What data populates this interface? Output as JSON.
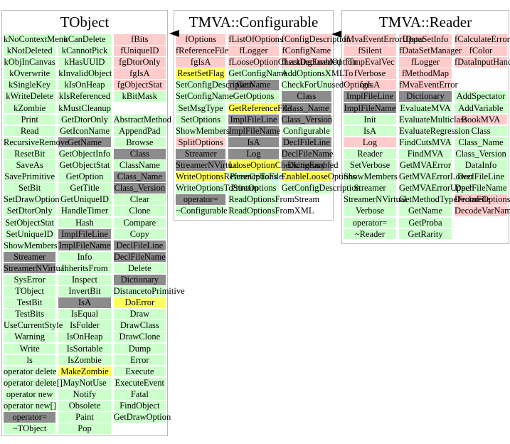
{
  "colors": {
    "g": "#ccffcc",
    "p": "#ffcccc",
    "y": "#ffff5c",
    "d": "#8c8c8c",
    "w": "transparent"
  },
  "panels": [
    {
      "id": "tobject",
      "title": "TObject",
      "columns": [
        [
          [
            "kNoContextMenu",
            "g"
          ],
          [
            "kNotDeleted",
            "g"
          ],
          [
            "kObjInCanvas",
            "g"
          ],
          [
            "kOverwrite",
            "g"
          ],
          [
            "kSingleKey",
            "g"
          ],
          [
            "kWriteDelete",
            "g"
          ],
          [
            "kZombie",
            "g"
          ],
          [
            "Print",
            "g"
          ],
          [
            "Read",
            "g"
          ],
          [
            "RecursiveRemove",
            "g"
          ],
          [
            "ResetBit",
            "g"
          ],
          [
            "SaveAs",
            "g"
          ],
          [
            "SavePrimitive",
            "g"
          ],
          [
            "SetBit",
            "g"
          ],
          [
            "SetDrawOption",
            "g"
          ],
          [
            "SetDtorOnly",
            "g"
          ],
          [
            "SetObjectStat",
            "g"
          ],
          [
            "SetUniqueID",
            "g"
          ],
          [
            "ShowMembers",
            "g"
          ],
          [
            "Streamer",
            "d"
          ],
          [
            "StreamerNVirtual",
            "d"
          ],
          [
            "SysError",
            "g"
          ],
          [
            "TObject",
            "g"
          ],
          [
            "TestBit",
            "g"
          ],
          [
            "TestBits",
            "g"
          ],
          [
            "UseCurrentStyle",
            "g"
          ],
          [
            "Warning",
            "g"
          ],
          [
            "Write",
            "g"
          ],
          [
            "ls",
            "g"
          ],
          [
            "operator delete",
            "g"
          ],
          [
            "operator delete[]",
            "g"
          ],
          [
            "operator new",
            "g"
          ],
          [
            "operator new[]",
            "g"
          ],
          [
            "operator=",
            "d"
          ],
          [
            "~TObject",
            "g"
          ]
        ],
        [
          [
            "kCanDelete",
            "g"
          ],
          [
            "kCannotPick",
            "g"
          ],
          [
            "kHasUUID",
            "g"
          ],
          [
            "kInvalidObject",
            "g"
          ],
          [
            "kIsOnHeap",
            "g"
          ],
          [
            "kIsReferenced",
            "g"
          ],
          [
            "kMustCleanup",
            "g"
          ],
          [
            "GetDtorOnly",
            "g"
          ],
          [
            "GetIconName",
            "g"
          ],
          [
            "GetName",
            "d"
          ],
          [
            "GetObjectInfo",
            "g"
          ],
          [
            "GetObjectStat",
            "g"
          ],
          [
            "GetOption",
            "g"
          ],
          [
            "GetTitle",
            "g"
          ],
          [
            "GetUniqueID",
            "g"
          ],
          [
            "HandleTimer",
            "g"
          ],
          [
            "Hash",
            "g"
          ],
          [
            "ImplFileLine",
            "d"
          ],
          [
            "ImplFileName",
            "d"
          ],
          [
            "Info",
            "g"
          ],
          [
            "InheritsFrom",
            "g"
          ],
          [
            "Inspect",
            "g"
          ],
          [
            "InvertBit",
            "g"
          ],
          [
            "IsA",
            "d"
          ],
          [
            "IsEqual",
            "g"
          ],
          [
            "IsFolder",
            "g"
          ],
          [
            "IsOnHeap",
            "g"
          ],
          [
            "IsSortable",
            "g"
          ],
          [
            "IsZombie",
            "g"
          ],
          [
            "MakeZombie",
            "y"
          ],
          [
            "MayNotUse",
            "g"
          ],
          [
            "Notify",
            "g"
          ],
          [
            "Obsolete",
            "g"
          ],
          [
            "Paint",
            "g"
          ],
          [
            "Pop",
            "g"
          ]
        ],
        [
          [
            "fBits",
            "p"
          ],
          [
            "fUniqueID",
            "p"
          ],
          [
            "fgDtorOnly",
            "p"
          ],
          [
            "fgIsA",
            "p"
          ],
          [
            "fgObjectStat",
            "p"
          ],
          [
            "kBitMask",
            "g"
          ],
          [
            "",
            "w"
          ],
          [
            "AbstractMethod",
            "g"
          ],
          [
            "AppendPad",
            "g"
          ],
          [
            "Browse",
            "g"
          ],
          [
            "Class",
            "d"
          ],
          [
            "ClassName",
            "g"
          ],
          [
            "Class_Name",
            "d"
          ],
          [
            "Class_Version",
            "d"
          ],
          [
            "Clear",
            "g"
          ],
          [
            "Clone",
            "g"
          ],
          [
            "Compare",
            "g"
          ],
          [
            "Copy",
            "g"
          ],
          [
            "DeclFileLine",
            "d"
          ],
          [
            "DeclFileName",
            "d"
          ],
          [
            "Delete",
            "g"
          ],
          [
            "Dictionary",
            "d"
          ],
          [
            "DistancetoPrimitive",
            "g"
          ],
          [
            "DoError",
            "y"
          ],
          [
            "Draw",
            "g"
          ],
          [
            "DrawClass",
            "g"
          ],
          [
            "DrawClone",
            "g"
          ],
          [
            "Dump",
            "g"
          ],
          [
            "Error",
            "g"
          ],
          [
            "Execute",
            "g"
          ],
          [
            "ExecuteEvent",
            "g"
          ],
          [
            "Fatal",
            "g"
          ],
          [
            "FindObject",
            "g"
          ],
          [
            "GetDrawOption",
            "g"
          ],
          [
            "",
            "w"
          ]
        ]
      ]
    },
    {
      "id": "configurable",
      "title": "TMVA::Configurable",
      "columns": [
        [
          [
            "fOptions",
            "p"
          ],
          [
            "fReferenceFile",
            "p"
          ],
          [
            "fgIsA",
            "p"
          ],
          [
            "ResetSetFlag",
            "y"
          ],
          [
            "SetConfigDescription",
            "g"
          ],
          [
            "SetConfigName",
            "g"
          ],
          [
            "SetMsgType",
            "g"
          ],
          [
            "SetOptions",
            "g"
          ],
          [
            "ShowMembers",
            "g"
          ],
          [
            "SplitOptions",
            "p"
          ],
          [
            "Streamer",
            "d"
          ],
          [
            "StreamerNVirtual",
            "d"
          ],
          [
            "WriteOptionsReferenceToFile",
            "y"
          ],
          [
            "WriteOptionsToStream",
            "g"
          ],
          [
            "operator=",
            "d"
          ],
          [
            "~Configurable",
            "g"
          ]
        ],
        [
          [
            "fListOfOptions",
            "p"
          ],
          [
            "fLogger",
            "p"
          ],
          [
            "fLooseOptionCheckingEnabled",
            "p"
          ],
          [
            "GetConfigName",
            "g"
          ],
          [
            "GetName",
            "d"
          ],
          [
            "GetOptions",
            "g"
          ],
          [
            "GetReferenceFile",
            "y"
          ],
          [
            "ImplFileLine",
            "d"
          ],
          [
            "ImplFileName",
            "d"
          ],
          [
            "IsA",
            "d"
          ],
          [
            "Log",
            "d"
          ],
          [
            "LooseOptionCheckingEnabled",
            "y"
          ],
          [
            "ParseOptions",
            "g"
          ],
          [
            "PrintOptions",
            "g"
          ],
          [
            "ReadOptionsFromStream",
            "g"
          ],
          [
            "ReadOptionsFromXML",
            "g"
          ]
        ],
        [
          [
            "fConfigDescription",
            "p"
          ],
          [
            "fConfigName",
            "p"
          ],
          [
            "fLastDeclaredOption",
            "p"
          ],
          [
            "AddOptionsXMLTo",
            "g"
          ],
          [
            "CheckForUnusedOptions",
            "g"
          ],
          [
            "Class",
            "d"
          ],
          [
            "Class_Name",
            "d"
          ],
          [
            "Class_Version",
            "d"
          ],
          [
            "Configurable",
            "g"
          ],
          [
            "DeclFileLine",
            "d"
          ],
          [
            "DeclFileName",
            "d"
          ],
          [
            "Dictionary",
            "d"
          ],
          [
            "EnableLooseOptions",
            "y"
          ],
          [
            "GetConfigDescription",
            "g"
          ],
          [
            "",
            "w"
          ],
          [
            "",
            "w"
          ]
        ]
      ]
    },
    {
      "id": "reader",
      "title": "TMVA::Reader",
      "columns": [
        [
          [
            "fMvaEventErrorUpper",
            "p"
          ],
          [
            "fSilent",
            "p"
          ],
          [
            "fTmpEvalVec",
            "p"
          ],
          [
            "fVerbose",
            "p"
          ],
          [
            "fgIsA",
            "p"
          ],
          [
            "ImplFileLine",
            "d"
          ],
          [
            "ImplFileName",
            "d"
          ],
          [
            "Init",
            "g"
          ],
          [
            "IsA",
            "g"
          ],
          [
            "Log",
            "p"
          ],
          [
            "Reader",
            "g"
          ],
          [
            "SetVerbose",
            "g"
          ],
          [
            "ShowMembers",
            "g"
          ],
          [
            "Streamer",
            "g"
          ],
          [
            "StreamerNVirtual",
            "g"
          ],
          [
            "Verbose",
            "g"
          ],
          [
            "operator=",
            "g"
          ],
          [
            "~Reader",
            "g"
          ]
        ],
        [
          [
            "fDataSetInfo",
            "p"
          ],
          [
            "fDataSetManager",
            "p"
          ],
          [
            "fLogger",
            "p"
          ],
          [
            "fMethodMap",
            "p"
          ],
          [
            "fMvaEventError",
            "p"
          ],
          [
            "Dictionary",
            "d"
          ],
          [
            "EvaluateMVA",
            "g"
          ],
          [
            "EvaluateMulticlass",
            "g"
          ],
          [
            "EvaluateRegression",
            "g"
          ],
          [
            "FindCutsMVA",
            "g"
          ],
          [
            "FindMVA",
            "g"
          ],
          [
            "GetMVAError",
            "g"
          ],
          [
            "GetMVAErrorLower",
            "g"
          ],
          [
            "GetMVAErrorUpper",
            "g"
          ],
          [
            "GetMethodTypeFromFile",
            "g"
          ],
          [
            "GetName",
            "g"
          ],
          [
            "GetProba",
            "g"
          ],
          [
            "GetRarity",
            "g"
          ]
        ],
        [
          [
            "fCalculateError",
            "p"
          ],
          [
            "fColor",
            "p"
          ],
          [
            "fDataInputHandler",
            "p"
          ],
          [
            "",
            "w"
          ],
          [
            "",
            "w"
          ],
          [
            "AddSpectator",
            "g"
          ],
          [
            "AddVariable",
            "g"
          ],
          [
            "BookMVA",
            "p"
          ],
          [
            "Class",
            "g"
          ],
          [
            "Class_Name",
            "g"
          ],
          [
            "Class_Version",
            "g"
          ],
          [
            "DataInfo",
            "g"
          ],
          [
            "DeclFileLine",
            "g"
          ],
          [
            "DeclFileName",
            "g"
          ],
          [
            "DeclareOptions",
            "p"
          ],
          [
            "DecodeVarNames",
            "p"
          ],
          [
            "",
            "w"
          ],
          [
            "",
            "w"
          ]
        ]
      ]
    }
  ],
  "panel_titles": {
    "tobject": "TObject",
    "configurable": "TMVA::Configurable",
    "reader": "TMVA::Reader"
  }
}
